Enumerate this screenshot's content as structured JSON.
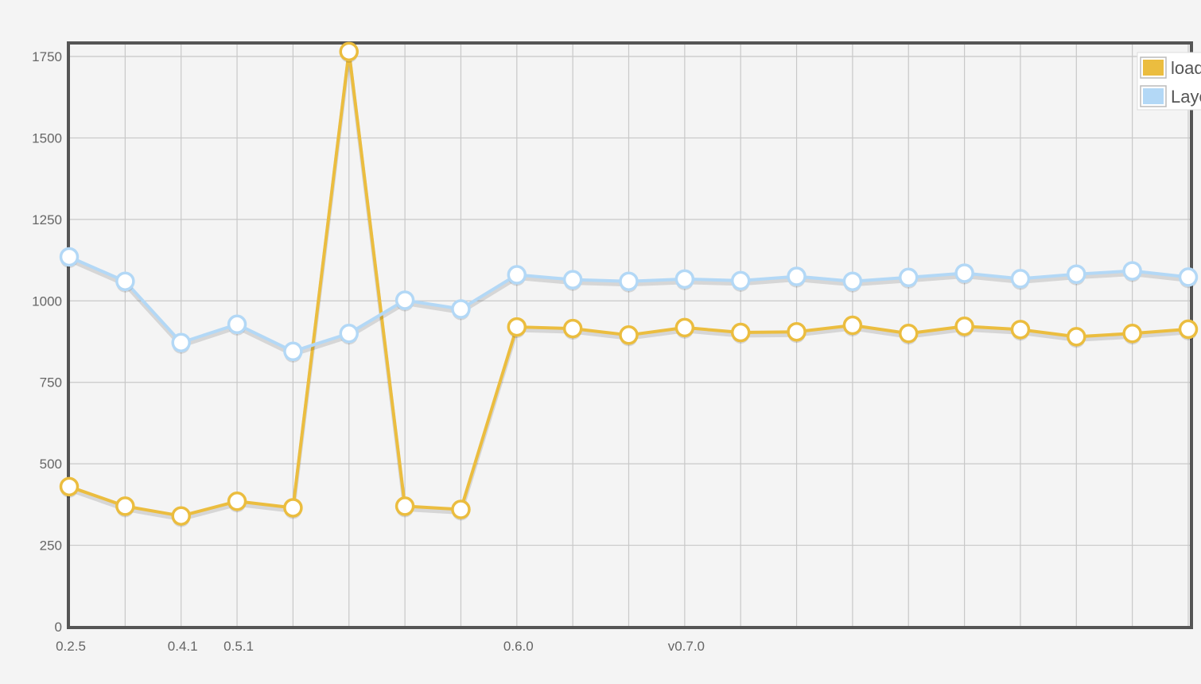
{
  "chart_data": {
    "type": "line",
    "title": "",
    "xlabel": "",
    "ylabel": "",
    "ylim": [
      0,
      1750
    ],
    "yticks": [
      0,
      250,
      500,
      750,
      1000,
      1250,
      1500,
      1750
    ],
    "grid": true,
    "legend_position": "top-right",
    "x_tick_labels": [
      "0.2.5",
      "",
      "0.4.1",
      "0.5.1",
      "",
      "",
      "",
      "",
      "0.6.0",
      "",
      "",
      "v0.7.0",
      "",
      "",
      "",
      "",
      "",
      "",
      "",
      "",
      ""
    ],
    "series": [
      {
        "name": "load",
        "color": "#ebbd3f",
        "values": [
          430,
          370,
          340,
          385,
          365,
          1765,
          370,
          360,
          920,
          915,
          895,
          918,
          903,
          905,
          925,
          900,
          922,
          912,
          890,
          900,
          913
        ]
      },
      {
        "name": "Layout",
        "color": "#b3d8f6",
        "values": [
          1135,
          1060,
          872,
          928,
          845,
          900,
          1002,
          975,
          1080,
          1065,
          1060,
          1067,
          1062,
          1075,
          1060,
          1072,
          1085,
          1068,
          1082,
          1092,
          1073
        ]
      }
    ]
  }
}
